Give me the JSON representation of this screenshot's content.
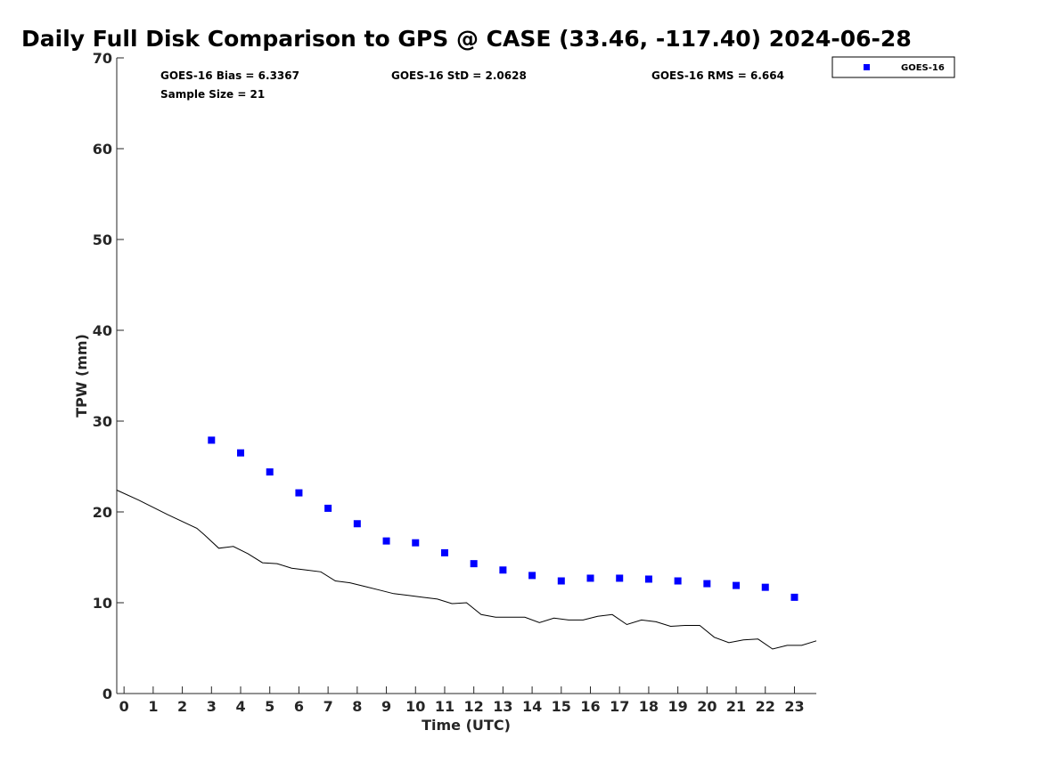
{
  "chart_data": {
    "type": "scatter",
    "title": "Daily Full Disk Comparison to GPS @ CASE (33.46, -117.40) 2024-06-28",
    "xlabel": "Time (UTC)",
    "ylabel": "TPW (mm)",
    "xlim": [
      -0.25,
      23.75
    ],
    "ylim": [
      0,
      70
    ],
    "x_ticks": [
      0,
      1,
      2,
      3,
      4,
      5,
      6,
      7,
      8,
      9,
      10,
      11,
      12,
      13,
      14,
      15,
      16,
      17,
      18,
      19,
      20,
      21,
      22,
      23
    ],
    "y_ticks": [
      0,
      10,
      20,
      30,
      40,
      50,
      60,
      70
    ],
    "grid": false,
    "legend_position": "top-right",
    "stats": {
      "bias": "GOES-16 Bias = 6.3367",
      "std": "GOES-16 StD = 2.0628",
      "rms": "GOES-16 RMS = 6.664",
      "sample": "Sample Size = 21"
    },
    "series": [
      {
        "name": "GOES-16",
        "kind": "scatter",
        "marker": "square",
        "color": "#0000ff",
        "x": [
          3,
          4,
          5,
          6,
          7,
          8,
          9,
          10,
          11,
          12,
          13,
          14,
          15,
          16,
          17,
          18,
          19,
          20,
          21,
          22,
          23
        ],
        "y": [
          27.9,
          26.5,
          24.4,
          22.1,
          20.4,
          18.7,
          16.8,
          16.6,
          15.5,
          14.3,
          13.6,
          13.0,
          12.4,
          12.7,
          12.7,
          12.6,
          12.4,
          12.1,
          11.9,
          11.7,
          10.6
        ]
      },
      {
        "kind": "line",
        "color": "#000000",
        "x": [
          -0.25,
          0.5,
          1.5,
          2.5,
          2.75,
          3.25,
          3.75,
          4.25,
          4.75,
          5.25,
          5.75,
          6.25,
          6.75,
          7.25,
          7.75,
          8.25,
          8.75,
          9.25,
          9.75,
          10.25,
          10.75,
          11.25,
          11.75,
          12.25,
          12.75,
          13.25,
          13.75,
          14.25,
          14.75,
          15.25,
          15.75,
          16.25,
          16.75,
          17.25,
          17.75,
          18.25,
          18.75,
          19.25,
          19.75,
          20.25,
          20.75,
          21.25,
          21.75,
          22.25,
          22.75,
          23.25,
          23.75
        ],
        "y": [
          22.4,
          21.3,
          19.7,
          18.2,
          17.5,
          16.0,
          16.2,
          15.4,
          14.4,
          14.3,
          13.8,
          13.6,
          13.4,
          12.4,
          12.2,
          11.8,
          11.4,
          11.0,
          10.8,
          10.6,
          10.4,
          9.9,
          10.0,
          8.7,
          8.4,
          8.4,
          8.4,
          7.8,
          8.3,
          8.1,
          8.1,
          8.5,
          8.7,
          7.6,
          8.1,
          7.9,
          7.4,
          7.5,
          7.5,
          6.2,
          5.6,
          5.9,
          6.0,
          4.9,
          5.3,
          5.3,
          5.8
        ]
      }
    ]
  }
}
